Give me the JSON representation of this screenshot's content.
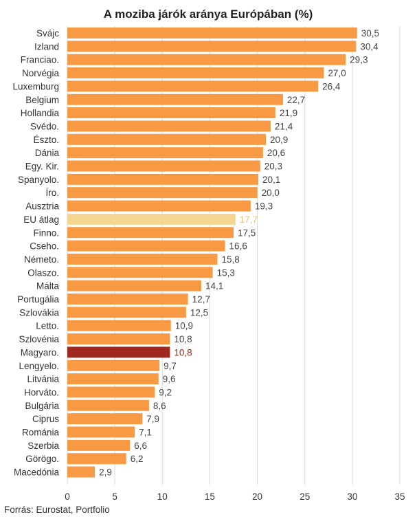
{
  "chart_data": {
    "type": "bar",
    "orientation": "horizontal",
    "title": "A moziba járók aránya Európában (%)",
    "categories": [
      "Svájc",
      "Izland",
      "Franciao.",
      "Norvégia",
      "Luxemburg",
      "Belgium",
      "Hollandia",
      "Svédo.",
      "Észto.",
      "Dánia",
      "Egy. Kir.",
      "Spanyolo.",
      "Íro.",
      "Ausztria",
      "EU átlag",
      "Finno.",
      "Cseho.",
      "Németo.",
      "Olaszo.",
      "Málta",
      "Portugália",
      "Szlovákia",
      "Letto.",
      "Szlovénia",
      "Magyaro.",
      "Lengyelo.",
      "Litvánia",
      "Horváto.",
      "Bulgária",
      "Ciprus",
      "Románia",
      "Szerbia",
      "Görögo.",
      "Macedónia"
    ],
    "values": [
      30.5,
      30.4,
      29.3,
      27.0,
      26.4,
      22.7,
      21.9,
      21.4,
      20.9,
      20.6,
      20.3,
      20.1,
      20.0,
      19.3,
      17.7,
      17.5,
      16.6,
      15.8,
      15.3,
      14.1,
      12.7,
      12.5,
      10.9,
      10.8,
      10.8,
      9.7,
      9.6,
      9.2,
      8.6,
      7.9,
      7.1,
      6.6,
      6.2,
      2.9
    ],
    "value_labels": [
      "30,5",
      "30,4",
      "29,3",
      "27,0",
      "26,4",
      "22,7",
      "21,9",
      "21,4",
      "20,9",
      "20,6",
      "20,3",
      "20,1",
      "20,0",
      "19,3",
      "17,7",
      "17,5",
      "16,6",
      "15,8",
      "15,3",
      "14,1",
      "12,7",
      "12,5",
      "10,9",
      "10,8",
      "10,8",
      "9,7",
      "9,6",
      "9,2",
      "8,6",
      "7,9",
      "7,1",
      "6,6",
      "6,2",
      "2,9"
    ],
    "xlim": [
      0,
      35
    ],
    "xticks": [
      0,
      5,
      10,
      15,
      20,
      25,
      30,
      35
    ],
    "grid": "vertical",
    "highlights": {
      "EU átlag": "eu",
      "Magyaro.": "hu"
    },
    "colors": {
      "bar": "#f79a43",
      "eu": "#f5d590",
      "hu": "#a0281e",
      "label": "#444444",
      "eu_label": "#f3c068",
      "hu_label": "#a0281e",
      "grid": "#d9d9d9"
    }
  },
  "source": "Forrás: Eurostat, Portfolio"
}
